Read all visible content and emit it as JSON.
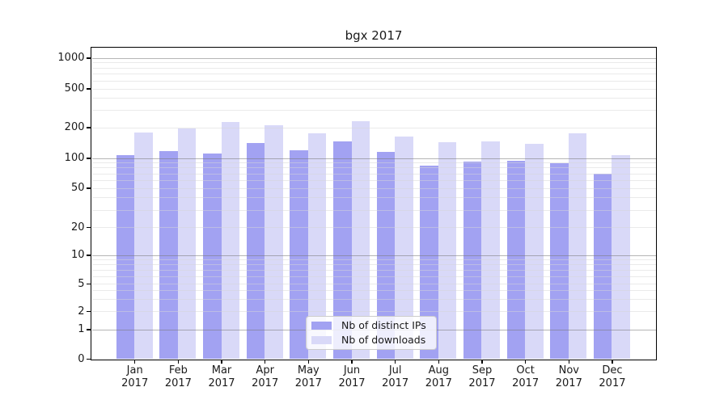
{
  "title": "bgx 2017",
  "chart_data": {
    "type": "bar",
    "title": "bgx 2017",
    "categories": [
      "Jan 2017",
      "Feb 2017",
      "Mar 2017",
      "Apr 2017",
      "May 2017",
      "Jun 2017",
      "Jul 2017",
      "Aug 2017",
      "Sep 2017",
      "Oct 2017",
      "Nov 2017",
      "Dec 2017"
    ],
    "series": [
      {
        "name": "Nb of distinct IPs",
        "color": "#a2a2f2",
        "values": [
          107,
          117,
          112,
          141,
          121,
          147,
          116,
          85,
          93,
          94,
          90,
          70
        ]
      },
      {
        "name": "Nb of downloads",
        "color": "#d9d9f8",
        "values": [
          180,
          195,
          229,
          212,
          175,
          234,
          163,
          144,
          148,
          138,
          176,
          108
        ]
      }
    ],
    "xlabel": "",
    "ylabel": "",
    "yscale": "symlog",
    "y_ticks": [
      0,
      1,
      2,
      5,
      10,
      20,
      50,
      100,
      200,
      500,
      1000
    ],
    "ylim": [
      0,
      1100
    ],
    "grid": true,
    "legend_position": "lower center"
  }
}
